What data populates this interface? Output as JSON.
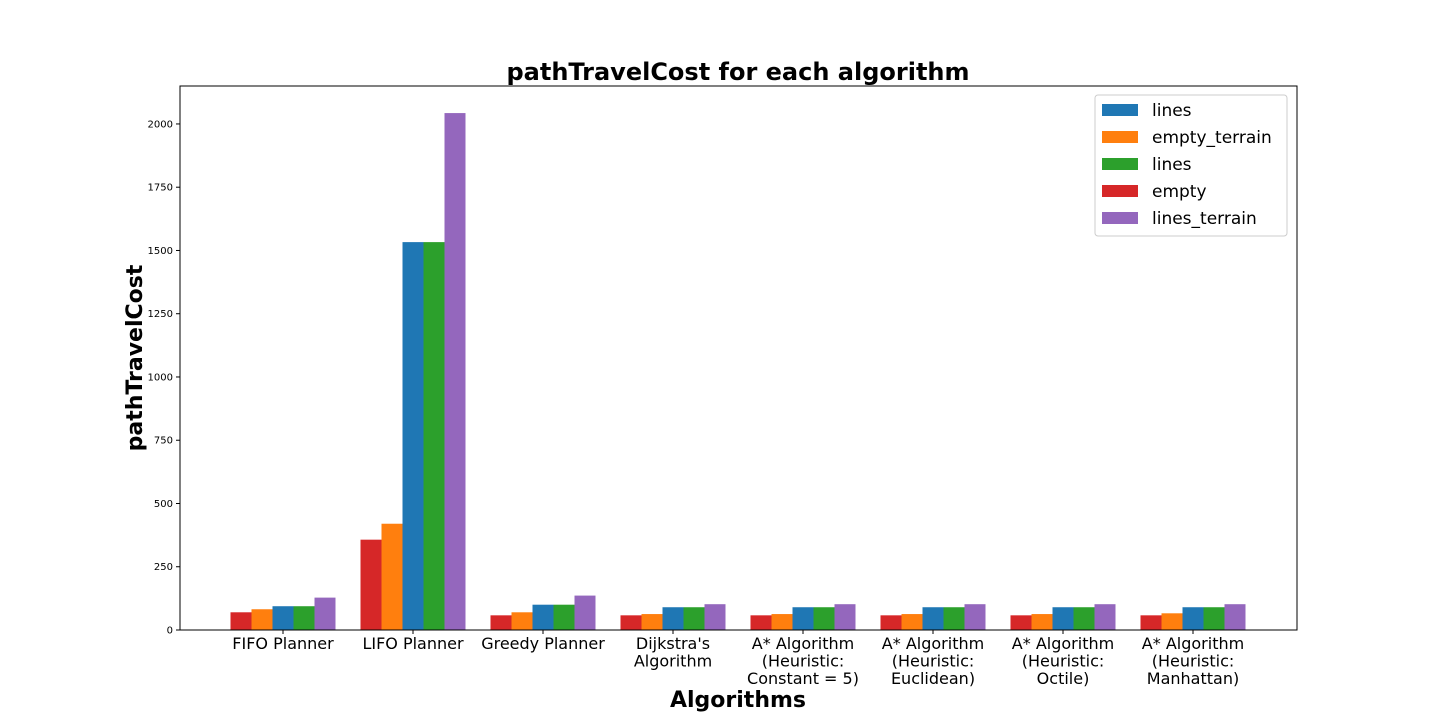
{
  "chart_data": {
    "type": "bar",
    "title": "pathTravelCost for each algorithm",
    "xlabel": "Algorithms",
    "ylabel": "pathTravelCost",
    "ylim": [
      0,
      2150
    ],
    "yticks": [
      0,
      250,
      500,
      750,
      1000,
      1250,
      1500,
      1750,
      2000
    ],
    "ytick_labels": [
      "0",
      "250",
      "500",
      "750",
      "1000",
      "1250",
      "1500",
      "1750",
      "2000"
    ],
    "categories": [
      [
        "FIFO Planner"
      ],
      [
        "LIFO Planner"
      ],
      [
        "Greedy Planner"
      ],
      [
        "Dijkstra's",
        "Algorithm"
      ],
      [
        "A* Algorithm",
        "(Heuristic:",
        "Constant = 5)"
      ],
      [
        "A* Algorithm",
        "(Heuristic:",
        "Euclidean)"
      ],
      [
        "A* Algorithm",
        "(Heuristic:",
        "Octile)"
      ],
      [
        "A* Algorithm",
        "(Heuristic:",
        "Manhattan)"
      ]
    ],
    "series": [
      {
        "name": "empty",
        "color": "#d62728",
        "values": [
          70,
          357,
          58,
          58,
          58,
          58,
          58,
          58
        ]
      },
      {
        "name": "empty_terrain",
        "color": "#ff7f0e",
        "values": [
          82,
          420,
          70,
          63,
          63,
          63,
          63,
          66
        ]
      },
      {
        "name": "lines",
        "color": "#1f77b4",
        "values": [
          94,
          1533,
          100,
          90,
          90,
          90,
          90,
          90
        ]
      },
      {
        "name": "lines",
        "color": "#2ca02c",
        "values": [
          94,
          1533,
          100,
          90,
          90,
          90,
          90,
          90
        ]
      },
      {
        "name": "lines_terrain",
        "color": "#9467bd",
        "values": [
          128,
          2043,
          136,
          102,
          102,
          102,
          102,
          102
        ]
      }
    ],
    "legend": {
      "placement": "top-right",
      "entries": [
        {
          "label": "lines",
          "color": "#1f77b4"
        },
        {
          "label": "empty_terrain",
          "color": "#ff7f0e"
        },
        {
          "label": "lines",
          "color": "#2ca02c"
        },
        {
          "label": "empty",
          "color": "#d62728"
        },
        {
          "label": "lines_terrain",
          "color": "#9467bd"
        }
      ]
    },
    "grid": false
  }
}
